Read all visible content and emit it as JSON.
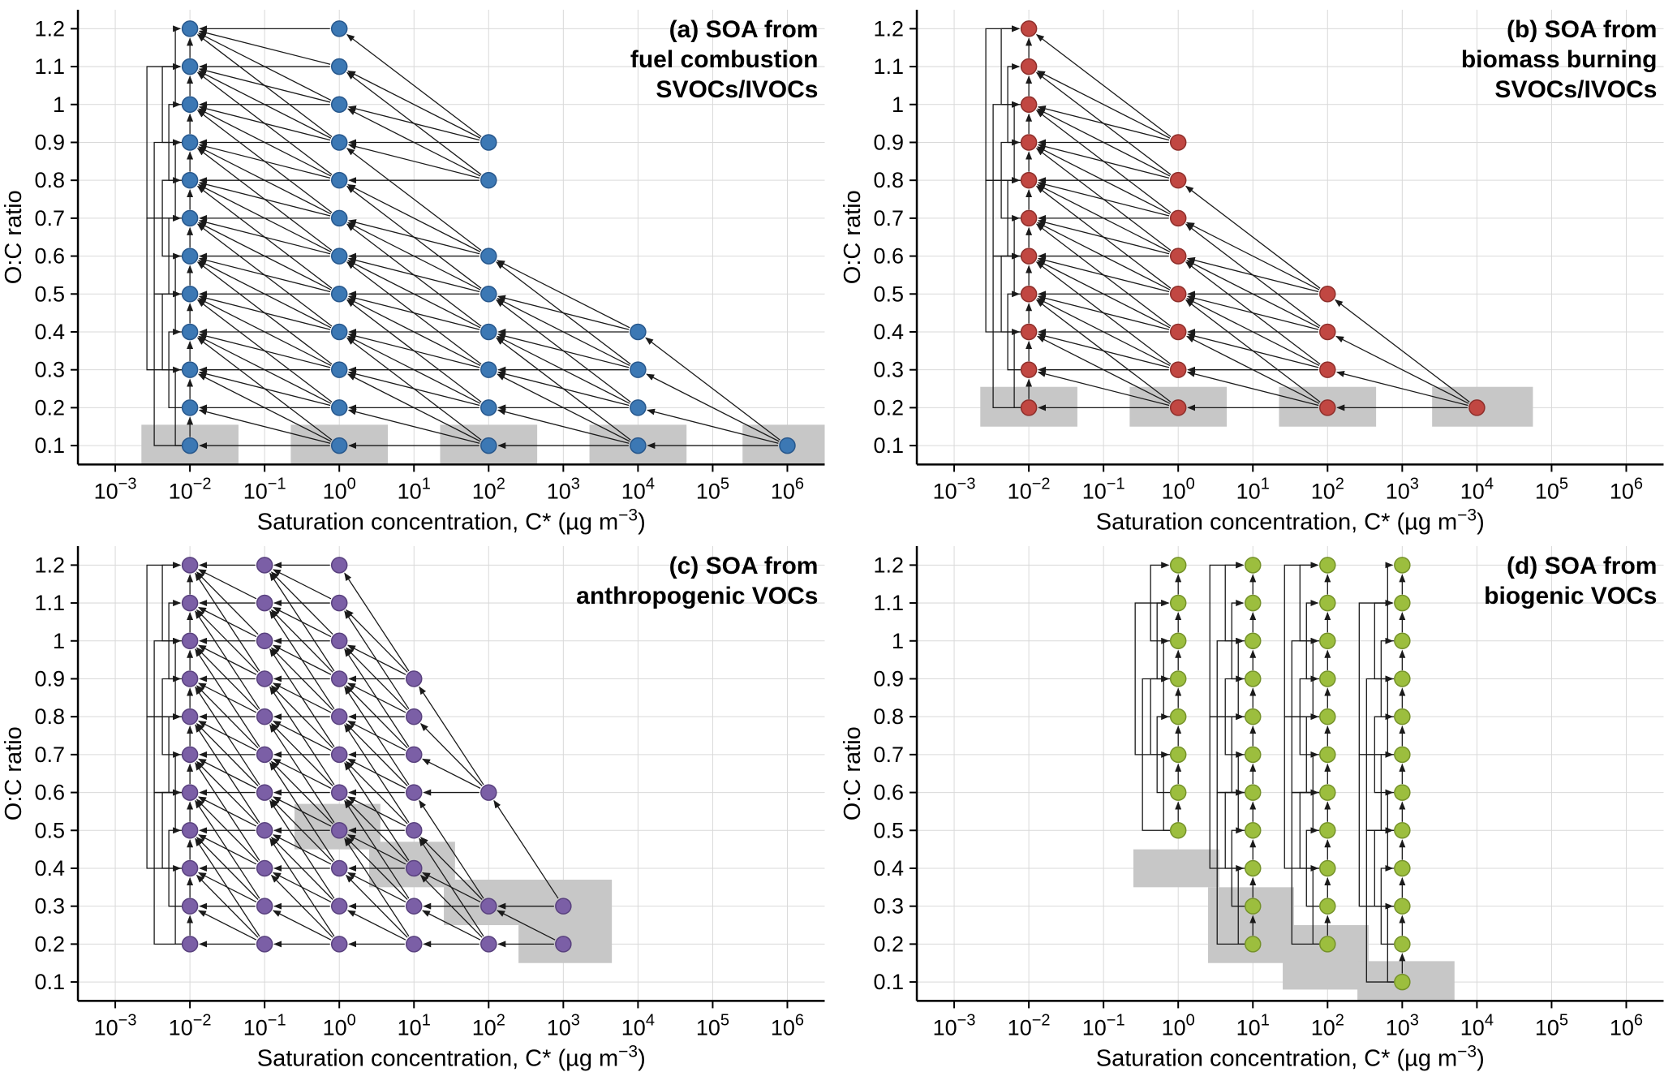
{
  "axis": {
    "xlabel_parts": [
      {
        "t": "Saturation concentration, C* (µg m"
      },
      {
        "t": "−3",
        "sup": true
      },
      {
        "t": ")"
      }
    ],
    "ylabel": "O:C ratio",
    "xlim": [
      -3.5,
      6.5
    ],
    "ylim": [
      0.05,
      1.25
    ],
    "x_scale": "log10",
    "x_ticks": [
      {
        "v": -3,
        "base": "10",
        "exp": "−3"
      },
      {
        "v": -2,
        "base": "10",
        "exp": "−2"
      },
      {
        "v": -1,
        "base": "10",
        "exp": "−1"
      },
      {
        "v": 0,
        "base": "10",
        "exp": "0"
      },
      {
        "v": 1,
        "base": "10",
        "exp": "1"
      },
      {
        "v": 2,
        "base": "10",
        "exp": "2"
      },
      {
        "v": 3,
        "base": "10",
        "exp": "3"
      },
      {
        "v": 4,
        "base": "10",
        "exp": "4"
      },
      {
        "v": 5,
        "base": "10",
        "exp": "5"
      },
      {
        "v": 6,
        "base": "10",
        "exp": "6"
      }
    ],
    "y_ticks": [
      {
        "v": 0.1,
        "label": "0.1"
      },
      {
        "v": 0.2,
        "label": "0.2"
      },
      {
        "v": 0.3,
        "label": "0.3"
      },
      {
        "v": 0.4,
        "label": "0.4"
      },
      {
        "v": 0.5,
        "label": "0.5"
      },
      {
        "v": 0.6,
        "label": "0.6"
      },
      {
        "v": 0.7,
        "label": "0.7"
      },
      {
        "v": 0.8,
        "label": "0.8"
      },
      {
        "v": 0.9,
        "label": "0.9"
      },
      {
        "v": 1.0,
        "label": "1"
      },
      {
        "v": 1.1,
        "label": "1.1"
      },
      {
        "v": 1.2,
        "label": "1.2"
      }
    ],
    "grid_on": true,
    "grid_color": "#d9d9d9",
    "box_color": "#c7c7c7",
    "arrow_color": "#1a1a1a"
  },
  "chart_data": [
    {
      "type": "scatter",
      "panel": "a",
      "title_lines": [
        "(a) SOA from",
        "fuel combustion",
        "SVOCs/IVOCs"
      ],
      "marker_color": "#3C78B4",
      "marker_edge": "#27578C",
      "columns": [
        {
          "logC": -2,
          "oc": [
            0.1,
            0.2,
            0.3,
            0.4,
            0.5,
            0.6,
            0.7,
            0.8,
            0.9,
            1.0,
            1.1,
            1.2
          ]
        },
        {
          "logC": 0,
          "oc": [
            0.1,
            0.2,
            0.3,
            0.4,
            0.5,
            0.6,
            0.7,
            0.8,
            0.9,
            1.0,
            1.1,
            1.2
          ]
        },
        {
          "logC": 2,
          "oc": [
            0.1,
            0.2,
            0.3,
            0.4,
            0.5,
            0.6,
            0.8,
            0.9
          ]
        },
        {
          "logC": 4,
          "oc": [
            0.1,
            0.2,
            0.3,
            0.4
          ]
        },
        {
          "logC": 6,
          "oc": [
            0.1
          ]
        }
      ],
      "precursor_boxes": [
        {
          "x0": -2.65,
          "x1": -1.35,
          "y0": 0.05,
          "y1": 0.155
        },
        {
          "x0": -0.65,
          "x1": 0.65,
          "y0": 0.05,
          "y1": 0.155
        },
        {
          "x0": 1.35,
          "x1": 2.65,
          "y0": 0.05,
          "y1": 0.155
        },
        {
          "x0": 3.35,
          "x1": 4.65,
          "y0": 0.05,
          "y1": 0.155
        },
        {
          "x0": 5.4,
          "x1": 6.5,
          "y0": 0.05,
          "y1": 0.155
        }
      ],
      "aging_arrow_oc_window": 0.3,
      "bracket_columns": [
        -2
      ]
    },
    {
      "type": "scatter",
      "panel": "b",
      "title_lines": [
        "(b) SOA from",
        "biomass burning",
        "SVOCs/IVOCs"
      ],
      "marker_color": "#C14742",
      "marker_edge": "#8E2F2B",
      "columns": [
        {
          "logC": -2,
          "oc": [
            0.2,
            0.3,
            0.4,
            0.5,
            0.6,
            0.7,
            0.8,
            0.9,
            1.0,
            1.1,
            1.2
          ]
        },
        {
          "logC": 0,
          "oc": [
            0.2,
            0.3,
            0.4,
            0.5,
            0.6,
            0.7,
            0.8,
            0.9
          ]
        },
        {
          "logC": 2,
          "oc": [
            0.2,
            0.3,
            0.4,
            0.5
          ]
        },
        {
          "logC": 4,
          "oc": [
            0.2
          ]
        }
      ],
      "precursor_boxes": [
        {
          "x0": -2.65,
          "x1": -1.35,
          "y0": 0.15,
          "y1": 0.255
        },
        {
          "x0": -0.65,
          "x1": 0.65,
          "y0": 0.15,
          "y1": 0.255
        },
        {
          "x0": 1.35,
          "x1": 2.65,
          "y0": 0.15,
          "y1": 0.255
        },
        {
          "x0": 3.4,
          "x1": 4.75,
          "y0": 0.15,
          "y1": 0.255
        }
      ],
      "aging_arrow_oc_window": 0.3,
      "bracket_columns": [
        -2
      ]
    },
    {
      "type": "scatter",
      "panel": "c",
      "title_lines": [
        "(c) SOA from",
        "anthropogenic VOCs"
      ],
      "marker_color": "#7B5FA6",
      "marker_edge": "#59417E",
      "columns": [
        {
          "logC": -2,
          "oc": [
            0.2,
            0.3,
            0.4,
            0.5,
            0.6,
            0.7,
            0.8,
            0.9,
            1.0,
            1.1,
            1.2
          ]
        },
        {
          "logC": -1,
          "oc": [
            0.2,
            0.3,
            0.4,
            0.5,
            0.6,
            0.7,
            0.8,
            0.9,
            1.0,
            1.1,
            1.2
          ]
        },
        {
          "logC": 0,
          "oc": [
            0.2,
            0.3,
            0.4,
            0.5,
            0.6,
            0.7,
            0.8,
            0.9,
            1.0,
            1.1,
            1.2
          ]
        },
        {
          "logC": 1,
          "oc": [
            0.2,
            0.3,
            0.4,
            0.5,
            0.6,
            0.7,
            0.8,
            0.9
          ]
        },
        {
          "logC": 2,
          "oc": [
            0.2,
            0.3,
            0.6
          ]
        },
        {
          "logC": 3,
          "oc": [
            0.2,
            0.3
          ]
        }
      ],
      "precursor_boxes": [
        {
          "x0": -0.6,
          "x1": 0.55,
          "y0": 0.45,
          "y1": 0.57
        },
        {
          "x0": 0.4,
          "x1": 1.55,
          "y0": 0.35,
          "y1": 0.47
        },
        {
          "x0": 1.4,
          "x1": 2.55,
          "y0": 0.25,
          "y1": 0.37
        },
        {
          "x0": 2.4,
          "x1": 3.65,
          "y0": 0.15,
          "y1": 0.37
        }
      ],
      "aging_arrow_oc_window": 0.3,
      "bracket_columns": [
        -2
      ]
    },
    {
      "type": "scatter",
      "panel": "d",
      "title_lines": [
        "(d) SOA from",
        "biogenic VOCs"
      ],
      "marker_color": "#9CBE3E",
      "marker_edge": "#75922A",
      "columns": [
        {
          "logC": 0,
          "oc": [
            0.5,
            0.6,
            0.7,
            0.8,
            0.9,
            1.0,
            1.1,
            1.2
          ]
        },
        {
          "logC": 1,
          "oc": [
            0.2,
            0.3,
            0.4,
            0.5,
            0.6,
            0.7,
            0.8,
            0.9,
            1.0,
            1.1,
            1.2
          ]
        },
        {
          "logC": 2,
          "oc": [
            0.2,
            0.3,
            0.4,
            0.5,
            0.6,
            0.7,
            0.8,
            0.9,
            1.0,
            1.1,
            1.2
          ]
        },
        {
          "logC": 3,
          "oc": [
            0.1,
            0.2,
            0.3,
            0.4,
            0.5,
            0.6,
            0.7,
            0.8,
            0.9,
            1.0,
            1.1,
            1.2
          ]
        }
      ],
      "precursor_boxes": [
        {
          "x0": -0.6,
          "x1": 0.55,
          "y0": 0.35,
          "y1": 0.45
        },
        {
          "x0": 0.4,
          "x1": 1.55,
          "y0": 0.15,
          "y1": 0.35
        },
        {
          "x0": 1.4,
          "x1": 2.55,
          "y0": 0.08,
          "y1": 0.25
        },
        {
          "x0": 2.4,
          "x1": 3.7,
          "y0": 0.05,
          "y1": 0.155
        }
      ],
      "aging_arrow_oc_window": 0,
      "bracket_columns": [
        0,
        1,
        2,
        3
      ]
    }
  ]
}
